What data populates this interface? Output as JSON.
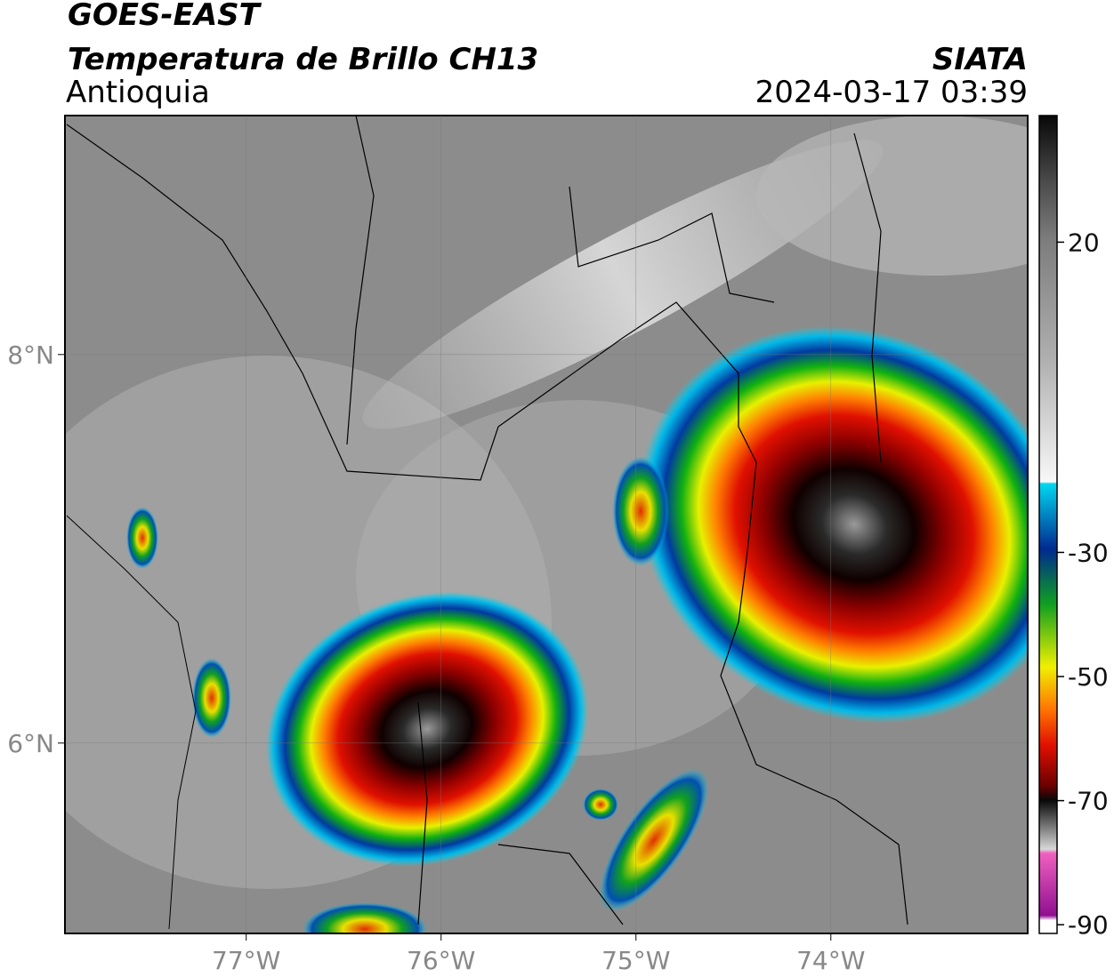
{
  "header": {
    "title": "GOES-EAST",
    "subtitle": "Temperatura de Brillo CH13",
    "region": "Antioquia",
    "source": "SIATA",
    "datetime": "2024-03-17 03:39"
  },
  "map": {
    "xlim": [
      -77.93,
      -72.99
    ],
    "ylim": [
      5.02,
      9.23
    ],
    "xticks": [
      {
        "value": -77,
        "label": "77°W"
      },
      {
        "value": -76,
        "label": "76°W"
      },
      {
        "value": -75,
        "label": "75°W"
      },
      {
        "value": -74,
        "label": "74°W"
      }
    ],
    "yticks": [
      {
        "value": 8,
        "label": "8°N"
      },
      {
        "value": 6,
        "label": "6°N"
      }
    ],
    "grid": true
  },
  "colorbar": {
    "lim": [
      -91.4,
      40.4
    ],
    "ticks": [
      20,
      -30,
      -50,
      -70,
      -90
    ]
  }
}
